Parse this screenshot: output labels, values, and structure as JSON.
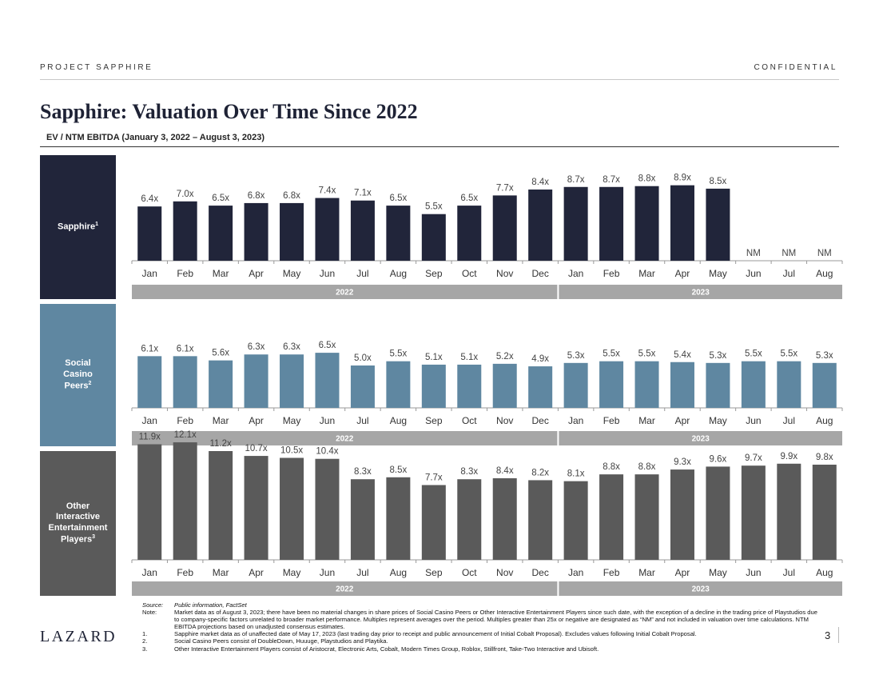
{
  "header": {
    "left": "PROJECT SAPPHIRE",
    "right": "CONFIDENTIAL"
  },
  "title": "Sapphire: Valuation Over Time Since 2022",
  "subtitle": "EV / NTM EBITDA (January 3, 2022 – August 3, 2023)",
  "panels": [
    {
      "label": "Sapphire",
      "sup": "1"
    },
    {
      "label": "Social\nCasino\nPeers",
      "sup": "2"
    },
    {
      "label": "Other\nInteractive\nEntertainment\nPlayers",
      "sup": "3"
    }
  ],
  "colors": {
    "sapphire": "#21253a",
    "social": "#5f87a1",
    "other": "#5a5a5a",
    "year_band": "#a6a6a6"
  },
  "chart_data": [
    {
      "type": "bar",
      "title": "Sapphire",
      "categories": [
        "Jan",
        "Feb",
        "Mar",
        "Apr",
        "May",
        "Jun",
        "Jul",
        "Aug",
        "Sep",
        "Oct",
        "Nov",
        "Dec",
        "Jan",
        "Feb",
        "Mar",
        "Apr",
        "May",
        "Jun",
        "Jul",
        "Aug"
      ],
      "values": [
        6.4,
        7.0,
        6.5,
        6.8,
        6.8,
        7.4,
        7.1,
        6.5,
        5.5,
        6.5,
        7.7,
        8.4,
        8.7,
        8.7,
        8.8,
        8.9,
        8.5,
        null,
        null,
        null
      ],
      "labels": [
        "6.4x",
        "7.0x",
        "6.5x",
        "6.8x",
        "6.8x",
        "7.4x",
        "7.1x",
        "6.5x",
        "5.5x",
        "6.5x",
        "7.7x",
        "8.4x",
        "8.7x",
        "8.7x",
        "8.8x",
        "8.9x",
        "8.5x",
        "NM",
        "NM",
        "NM"
      ],
      "years": [
        {
          "label": "2022",
          "count": 12
        },
        {
          "label": "2023",
          "count": 8
        }
      ],
      "ylim": [
        0,
        10
      ]
    },
    {
      "type": "bar",
      "title": "Social Casino Peers",
      "categories": [
        "Jan",
        "Feb",
        "Mar",
        "Apr",
        "May",
        "Jun",
        "Jul",
        "Aug",
        "Sep",
        "Oct",
        "Nov",
        "Dec",
        "Jan",
        "Feb",
        "Mar",
        "Apr",
        "May",
        "Jun",
        "Jul",
        "Aug"
      ],
      "values": [
        6.1,
        6.1,
        5.6,
        6.3,
        6.3,
        6.5,
        5.0,
        5.5,
        5.1,
        5.1,
        5.2,
        4.9,
        5.3,
        5.5,
        5.5,
        5.4,
        5.3,
        5.5,
        5.5,
        5.3
      ],
      "labels": [
        "6.1x",
        "6.1x",
        "5.6x",
        "6.3x",
        "6.3x",
        "6.5x",
        "5.0x",
        "5.5x",
        "5.1x",
        "5.1x",
        "5.2x",
        "4.9x",
        "5.3x",
        "5.5x",
        "5.5x",
        "5.4x",
        "5.3x",
        "5.5x",
        "5.5x",
        "5.3x"
      ],
      "years": [
        {
          "label": "2022",
          "count": 12
        },
        {
          "label": "2023",
          "count": 8
        }
      ],
      "ylim": [
        0,
        10
      ]
    },
    {
      "type": "bar",
      "title": "Other Interactive Entertainment Players",
      "categories": [
        "Jan",
        "Feb",
        "Mar",
        "Apr",
        "May",
        "Jun",
        "Jul",
        "Aug",
        "Sep",
        "Oct",
        "Nov",
        "Dec",
        "Jan",
        "Feb",
        "Mar",
        "Apr",
        "May",
        "Jun",
        "Jul",
        "Aug"
      ],
      "values": [
        11.9,
        12.1,
        11.2,
        10.7,
        10.5,
        10.4,
        8.3,
        8.5,
        7.7,
        8.3,
        8.4,
        8.2,
        8.1,
        8.8,
        8.8,
        9.3,
        9.6,
        9.7,
        9.9,
        9.8
      ],
      "labels": [
        "11.9x",
        "12.1x",
        "11.2x",
        "10.7x",
        "10.5x",
        "10.4x",
        "8.3x",
        "8.5x",
        "7.7x",
        "8.3x",
        "8.4x",
        "8.2x",
        "8.1x",
        "8.8x",
        "8.8x",
        "9.3x",
        "9.6x",
        "9.7x",
        "9.9x",
        "9.8x"
      ],
      "years": [
        {
          "label": "2022",
          "count": 12
        },
        {
          "label": "2023",
          "count": 8
        }
      ],
      "ylim": [
        0,
        14
      ]
    }
  ],
  "notes": [
    {
      "key": "Source:",
      "text": "Public information, FactSet",
      "italic": true
    },
    {
      "key": "Note:",
      "text": "Market data as of August 3, 2023; there have been no material changes in share prices of Social Casino Peers or Other Interactive Entertainment Players since such date, with the exception of a decline in the trading price of Playstudios due to company-specific factors unrelated to broader market performance. Multiples represent averages over the period. Multiples greater than 25x or negative are designated as “NM” and not included in valuation over time calculations. NTM EBITDA projections based on unadjusted consensus estimates."
    },
    {
      "key": "1.",
      "text": "Sapphire market data as of unaffected date of May 17, 2023 (last trading day prior to receipt and public announcement of Initial Cobalt Proposal). Excludes values following Initial Cobalt Proposal."
    },
    {
      "key": "2.",
      "text": "Social Casino Peers consist of DoubleDown, Huuuge, Playstudios and Playtika."
    },
    {
      "key": "3.",
      "text": "Other Interactive Entertainment Players consist of Aristocrat, Electronic Arts, Cobalt, Modern Times Group, Roblox, Stillfront, Take-Two Interactive and Ubisoft."
    }
  ],
  "footer": {
    "logo": "LAZARD",
    "page": "3"
  }
}
